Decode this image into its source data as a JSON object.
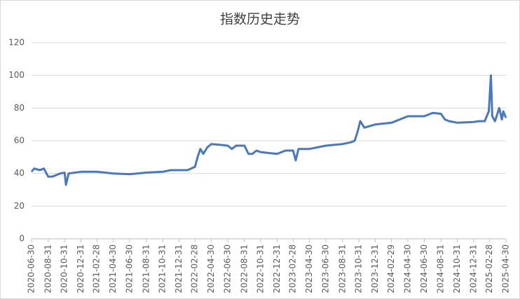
{
  "chart_data": {
    "type": "line",
    "title": "指数历史走势",
    "x": [
      "2020-06-30",
      "2020-07-10",
      "2020-07-31",
      "2020-08-15",
      "2020-08-31",
      "2020-09-15",
      "2020-09-30",
      "2020-10-15",
      "2020-10-31",
      "2020-11-05",
      "2020-11-15",
      "2020-12-31",
      "2021-02-28",
      "2021-04-30",
      "2021-06-30",
      "2021-08-31",
      "2021-10-31",
      "2021-11-30",
      "2021-12-31",
      "2022-01-31",
      "2022-02-28",
      "2022-03-10",
      "2022-03-20",
      "2022-03-31",
      "2022-04-15",
      "2022-04-30",
      "2022-05-31",
      "2022-06-30",
      "2022-07-15",
      "2022-07-31",
      "2022-08-31",
      "2022-09-15",
      "2022-09-30",
      "2022-10-15",
      "2022-10-31",
      "2022-12-31",
      "2023-01-31",
      "2023-02-28",
      "2023-03-10",
      "2023-03-20",
      "2023-04-30",
      "2023-06-30",
      "2023-08-31",
      "2023-09-30",
      "2023-10-15",
      "2023-10-25",
      "2023-11-05",
      "2023-11-20",
      "2023-12-31",
      "2024-02-29",
      "2024-04-30",
      "2024-06-30",
      "2024-07-31",
      "2024-08-31",
      "2024-09-15",
      "2024-09-30",
      "2024-10-31",
      "2024-12-31",
      "2025-01-20",
      "2025-02-10",
      "2025-02-25",
      "2025-03-05",
      "2025-03-10",
      "2025-03-20",
      "2025-04-05",
      "2025-04-15",
      "2025-04-20",
      "2025-04-30"
    ],
    "series": [
      {
        "color": "#4a78b8",
        "values": [
          41,
          43,
          42,
          43,
          38,
          38,
          39,
          40,
          40.5,
          33,
          40,
          41,
          41,
          40,
          39.5,
          40.5,
          41,
          42,
          42,
          42,
          44,
          50,
          55,
          52,
          56,
          58,
          57.5,
          57,
          55,
          57,
          57,
          52,
          52,
          54,
          53,
          52,
          54,
          54,
          48,
          55,
          55,
          57,
          58,
          59,
          60,
          65,
          72,
          68,
          70,
          71,
          75,
          75,
          77,
          76.5,
          73,
          72,
          71,
          71.5,
          72,
          72,
          78,
          100,
          75,
          72,
          80,
          73,
          78,
          74
        ]
      }
    ],
    "xlim": [
      "2020-06-30",
      "2025-04-30"
    ],
    "xticks": [
      "2020-06-30",
      "2020-08-31",
      "2020-10-31",
      "2020-12-31",
      "2021-02-28",
      "2021-04-30",
      "2021-06-30",
      "2021-08-31",
      "2021-10-31",
      "2021-12-31",
      "2022-02-28",
      "2022-04-30",
      "2022-06-30",
      "2022-08-31",
      "2022-10-31",
      "2022-12-31",
      "2023-02-28",
      "2023-04-30",
      "2023-06-30",
      "2023-08-31",
      "2023-10-31",
      "2023-12-31",
      "2024-02-29",
      "2024-04-30",
      "2024-06-30",
      "2024-08-31",
      "2024-10-31",
      "2024-12-31",
      "2025-02-28",
      "2025-04-30"
    ],
    "ylim": [
      0,
      120
    ],
    "yticks": [
      0,
      20,
      40,
      60,
      80,
      100,
      120
    ],
    "grid": true
  }
}
